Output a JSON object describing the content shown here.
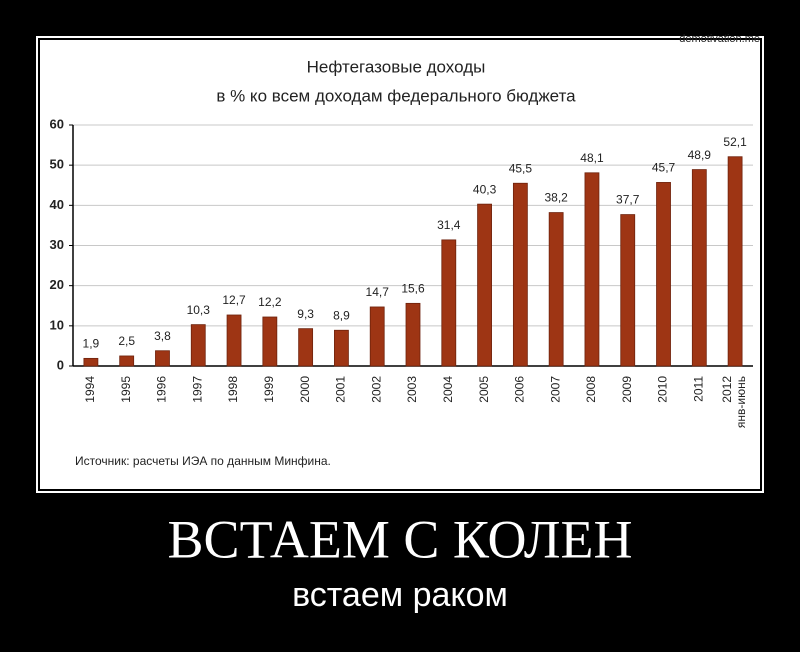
{
  "poster": {
    "watermark": "demotivation.me",
    "caption": "ВСТАЕМ С КОЛЕН",
    "subcaption": "встаем раком"
  },
  "chart_data": {
    "type": "bar",
    "title": "Нефтегазовые доходы",
    "subtitle": "в % ко всем доходам федерального бюджета",
    "source": "Источник: расчеты ИЭА по данным Минфина.",
    "categories": [
      "1994",
      "1995",
      "1996",
      "1997",
      "1998",
      "1999",
      "2000",
      "2001",
      "2002",
      "2003",
      "2004",
      "2005",
      "2006",
      "2007",
      "2008",
      "2009",
      "2010",
      "2011",
      "2012 янв-июнь"
    ],
    "values": [
      1.9,
      2.5,
      3.8,
      10.3,
      12.7,
      12.2,
      9.3,
      8.9,
      14.7,
      15.6,
      31.4,
      40.3,
      45.5,
      38.2,
      48.1,
      37.7,
      45.7,
      48.9,
      52.1
    ],
    "value_labels": [
      "1,9",
      "2,5",
      "3,8",
      "10,3",
      "12,7",
      "12,2",
      "9,3",
      "8,9",
      "14,7",
      "15,6",
      "31,4",
      "40,3",
      "45,5",
      "38,2",
      "48,1",
      "37,7",
      "45,7",
      "48,9",
      "52,1"
    ],
    "color": "#9e3514",
    "ylim": [
      0,
      60
    ],
    "yticks": [
      0,
      10,
      20,
      30,
      40,
      50,
      60
    ],
    "grid": true
  }
}
